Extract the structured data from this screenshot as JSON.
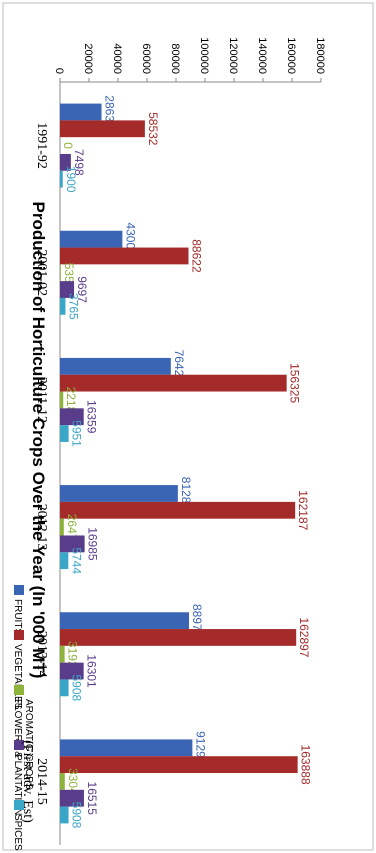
{
  "chart_data": {
    "type": "bar",
    "orientation": "rotated-90-clockwise",
    "title": "Production of Horticulture Crops Over the Year (In '000 MT)",
    "xlabel": "",
    "ylabel": "",
    "categories": [
      "1991-92",
      "2001-02",
      "2011-12",
      "2012-13",
      "2013-14",
      "2014-15\n(First adv. Est)"
    ],
    "ylim": [
      0,
      180000
    ],
    "yticks": [
      0,
      20000,
      40000,
      60000,
      80000,
      100000,
      120000,
      140000,
      160000,
      180000
    ],
    "legend_position": "top",
    "grid": false,
    "series": [
      {
        "name": "FRUITS",
        "color": "#3a64b4",
        "values": [
          28632,
          43001,
          76424,
          81285,
          88977,
          91293
        ]
      },
      {
        "name": "VEGETABLES",
        "color": "#a52a2a",
        "values": [
          58532,
          88622,
          156325,
          162187,
          162897,
          163888
        ]
      },
      {
        "name": "FLOWERS & AROMATIC",
        "color": "#8db33a",
        "values": [
          0,
          535,
          2218,
          2647,
          3192,
          3304
        ]
      },
      {
        "name": "PLANTATION CROPS",
        "color": "#5a3d8a",
        "values": [
          7498,
          9697,
          16359,
          16985,
          16301,
          16515
        ]
      },
      {
        "name": "SPICES",
        "color": "#3aa6c8",
        "values": [
          1900,
          3765,
          5951,
          5744,
          5908,
          5908
        ]
      }
    ]
  }
}
